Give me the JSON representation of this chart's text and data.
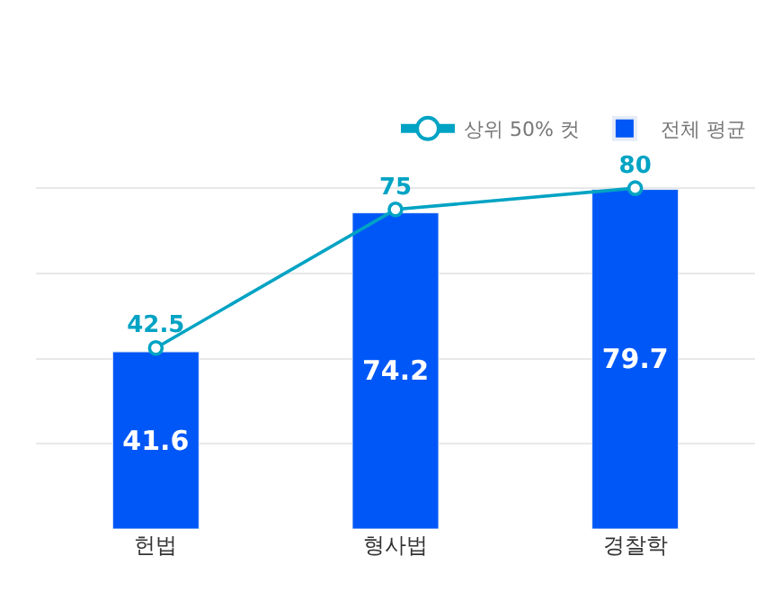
{
  "chart_data": {
    "type": "bar",
    "categories": [
      "헌법",
      "형사법",
      "경찰학"
    ],
    "series": [
      {
        "name": "상위 50% 컷",
        "type": "line",
        "color": "#00a3c4",
        "values": [
          42.5,
          75,
          80
        ]
      },
      {
        "name": "전체 평균",
        "color": "#0057f7",
        "values": [
          41.6,
          74.2,
          79.7
        ]
      }
    ],
    "tick_labels": "x",
    "grid": "y",
    "legend": "top right",
    "data_labels": true,
    "marker": "circle",
    "line_style": "solid"
  }
}
